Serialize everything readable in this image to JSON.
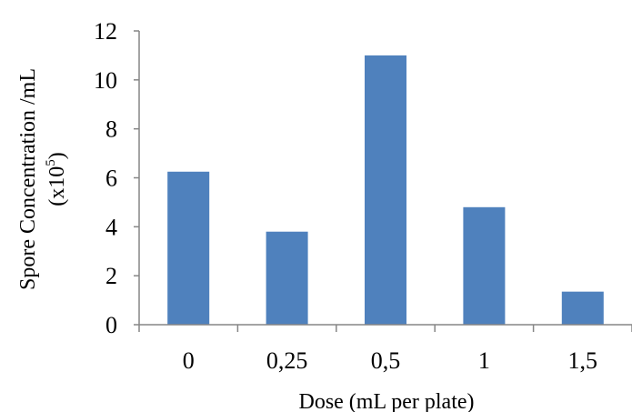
{
  "chart_data": {
    "type": "bar",
    "categories": [
      "0",
      "0,25",
      "0,5",
      "1",
      "1,5"
    ],
    "values": [
      6.25,
      3.8,
      11.0,
      4.8,
      1.35
    ],
    "title": "",
    "xlabel": "Dose (mL per plate)",
    "ylabel_line1": "Spore Concentration /mL",
    "ylabel_line2_prefix": "(x10",
    "ylabel_line2_exponent": "5",
    "ylabel_line2_suffix": ")",
    "ylim": [
      0,
      12
    ],
    "yticks": [
      "0",
      "2",
      "4",
      "6",
      "8",
      "10",
      "12"
    ],
    "grid": false,
    "legend": "none",
    "bar_color": "#4F81BD",
    "axis_color": "#868686"
  }
}
